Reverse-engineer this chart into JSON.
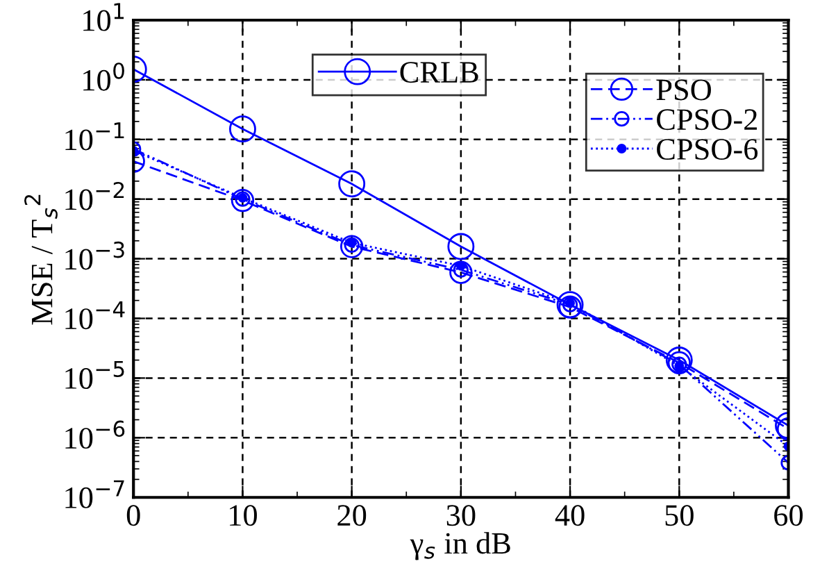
{
  "chart_data": {
    "type": "line",
    "xlabel": "γ$_{s}$ in dB",
    "ylabel": "MSE / T$_{s}$$^{2}$",
    "x": [
      0,
      10,
      20,
      30,
      40,
      50,
      60
    ],
    "series": [
      {
        "name": "CRLB",
        "color": "#0000ff",
        "marker": "circle",
        "line_style": "solid",
        "values": [
          1.5,
          0.15,
          0.018,
          0.0016,
          0.00017,
          2e-05,
          1.6e-06
        ]
      },
      {
        "name": "PSO",
        "color": "#0000ff",
        "marker": "circle",
        "line_style": "dashed",
        "values": [
          0.043,
          0.0095,
          0.0016,
          0.00059,
          0.000155,
          1.8e-05,
          1.4e-06
        ]
      },
      {
        "name": "CPSO-2",
        "color": "#0000ff",
        "marker": "circle",
        "line_style": "dashdot",
        "values": [
          0.069,
          0.01,
          0.0017,
          0.00065,
          0.00017,
          1.7e-05,
          3.8e-07
        ]
      },
      {
        "name": "CPSO-6",
        "color": "#0000ff",
        "marker": "dot",
        "line_style": "dotted",
        "values": [
          0.065,
          0.0105,
          0.00185,
          0.00076,
          0.00018,
          1.6e-05,
          7.2e-07
        ]
      }
    ],
    "log": "y",
    "xlim": [
      0,
      60
    ],
    "ylim": [
      1e-07,
      10
    ],
    "xticks": [
      0,
      10,
      20,
      30,
      40,
      50,
      60
    ],
    "yticks": [
      {
        "value": 1e-07,
        "label": "10$^{−7}$"
      },
      {
        "value": 1e-06,
        "label": "10$^{−6}$"
      },
      {
        "value": 1e-05,
        "label": "10$^{−5}$"
      },
      {
        "value": 0.0001,
        "label": "10$^{−4}$"
      },
      {
        "value": 0.001,
        "label": "10$^{−3}$"
      },
      {
        "value": 0.01,
        "label": "10$^{−2}$"
      },
      {
        "value": 0.1,
        "label": "10$^{−1}$"
      },
      {
        "value": 1,
        "label": "10$^{0}$"
      },
      {
        "value": 10,
        "label": "10$^{1}$"
      }
    ],
    "grid": true,
    "legend": "top right"
  }
}
